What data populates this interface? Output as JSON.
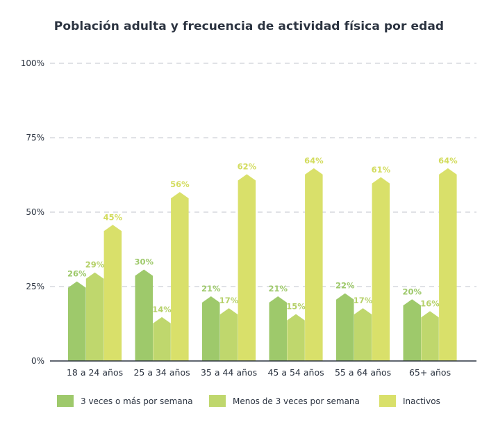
{
  "chart_data": {
    "type": "bar",
    "title": "Población adulta y frecuencia de actividad física por edad",
    "categories": [
      "18 a 24 años",
      "25 a 34 años",
      "35 a 44 años",
      "45 a 54 años",
      "55 a 64 años",
      "65+ años"
    ],
    "series": [
      {
        "name": "3 veces o más por semana",
        "color": "#9ec96b",
        "label_color": "#9ec96b",
        "values": [
          26,
          30,
          21,
          21,
          22,
          20
        ]
      },
      {
        "name": "Menos de 3 veces por semana",
        "color": "#bfd76d",
        "label_color": "#b6d16a",
        "values": [
          29,
          14,
          17,
          15,
          17,
          16
        ]
      },
      {
        "name": "Inactivos",
        "color": "#d9e06a",
        "label_color": "#d3dc5e",
        "values": [
          45,
          56,
          62,
          64,
          61,
          64
        ]
      }
    ],
    "value_suffix": "%",
    "ylim": [
      0,
      100
    ],
    "yticks": [
      "0%",
      "25%",
      "50%",
      "75%",
      "100%"
    ],
    "grid": true,
    "legend_position": "bottom"
  }
}
